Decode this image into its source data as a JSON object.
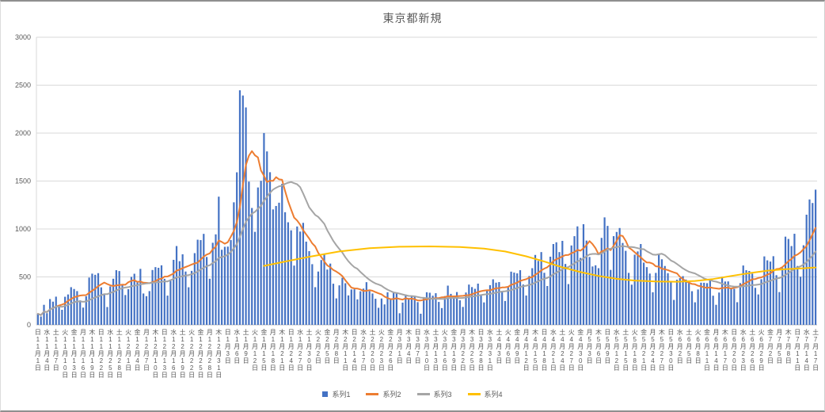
{
  "chart": {
    "title": "東京都新規"
  },
  "chart_data": {
    "type": "combo_bar_line",
    "title": "東京都新規",
    "grid": true,
    "legend_position": "bottom",
    "axis_text_color": "#595959",
    "gridline_color": "#D9D9D9",
    "axis_line_color": "#BFBFBF",
    "y_axis": {
      "min": 0,
      "max": 3000,
      "ticks": [
        0,
        500,
        1000,
        1500,
        2000,
        2500,
        3000
      ]
    },
    "x_tick_every": 3,
    "x_tick_labels": [
      "日11月1日",
      "水11月4日",
      "土11月7日",
      "火11月10日",
      "金11月13日",
      "月11月16日",
      "木11月19日",
      "日11月22日",
      "水11月25日",
      "土11月28日",
      "火12月1日",
      "金12月4日",
      "月12月7日",
      "木12月10日",
      "日12月13日",
      "水12月16日",
      "土12月19日",
      "火12月22日",
      "金12月25日",
      "月12月28日",
      "木12月31日",
      "日1月3日",
      "水1月6日",
      "土1月9日",
      "火1月12日",
      "金1月15日",
      "月1月18日",
      "木1月21日",
      "日1月24日",
      "水1月27日",
      "土1月30日",
      "火2月2日",
      "金2月5日",
      "月2月8日",
      "木2月11日",
      "日2月14日",
      "水2月17日",
      "土2月20日",
      "火2月23日",
      "金2月26日",
      "月3月1日",
      "木3月4日",
      "日3月7日",
      "水3月10日",
      "土3月13日",
      "火3月16日",
      "金3月19日",
      "月3月22日",
      "木3月25日",
      "日3月28日",
      "水3月31日",
      "土4月3日",
      "火4月6日",
      "金4月9日",
      "月4月12日",
      "木4月15日",
      "日4月18日",
      "水4月21日",
      "土4月24日",
      "火4月27日",
      "金4月30日",
      "月5月3日",
      "木5月6日",
      "日5月9日",
      "水5月12日",
      "土5月15日",
      "火5月18日",
      "金5月21日",
      "月5月24日",
      "木5月27日",
      "日5月30日",
      "水6月2日",
      "土6月5日",
      "火6月8日",
      "金6月11日",
      "月6月14日",
      "木6月17日",
      "日6月20日",
      "水6月23日",
      "土6月26日",
      "火6月29日",
      "金7月2日",
      "月7月5日",
      "木7月8日",
      "日7月11日",
      "水7月14日",
      "土7月17日"
    ],
    "values": [
      116,
      87,
      209,
      122,
      269,
      242,
      294,
      189,
      157,
      293,
      317,
      393,
      374,
      352,
      255,
      180,
      298,
      493,
      534,
      522,
      539,
      391,
      314,
      186,
      401,
      481,
      570,
      561,
      418,
      311,
      372,
      500,
      533,
      449,
      584,
      327,
      299,
      352,
      572,
      602,
      595,
      621,
      480,
      305,
      460,
      678,
      822,
      664,
      736,
      556,
      392,
      563,
      748,
      888,
      884,
      949,
      708,
      481,
      856,
      944,
      1337,
      783,
      814,
      816,
      884,
      1278,
      1591,
      2447,
      2392,
      2268,
      1494,
      1219,
      970,
      1433,
      1502,
      2001,
      1809,
      1592,
      1204,
      1240,
      1274,
      1471,
      1175,
      1070,
      986,
      618,
      1026,
      973,
      1064,
      868,
      769,
      633,
      393,
      556,
      676,
      734,
      577,
      639,
      429,
      276,
      412,
      491,
      434,
      307,
      369,
      371,
      266,
      350,
      378,
      445,
      353,
      327,
      272,
      178,
      275,
      213,
      340,
      270,
      337,
      329,
      121,
      232,
      316,
      279,
      301,
      293,
      237,
      116,
      290,
      340,
      335,
      304,
      330,
      239,
      175,
      300,
      409,
      323,
      303,
      342,
      256,
      187,
      337,
      420,
      394,
      376,
      430,
      313,
      234,
      364,
      414,
      475,
      440,
      446,
      355,
      249,
      399,
      555,
      545,
      537,
      570,
      421,
      306,
      510,
      591,
      729,
      667,
      759,
      543,
      405,
      711,
      843,
      861,
      759,
      876,
      635,
      425,
      828,
      925,
      1027,
      698,
      1050,
      879,
      708,
      609,
      621,
      591,
      907,
      1121,
      1032,
      573,
      925,
      969,
      1010,
      854,
      772,
      542,
      419,
      732,
      766,
      843,
      649,
      602,
      535,
      340,
      542,
      743,
      684,
      614,
      539,
      448,
      260,
      471,
      487,
      508,
      472,
      436,
      351,
      235,
      369,
      440,
      439,
      435,
      467,
      304,
      209,
      337,
      501,
      452,
      453,
      388,
      376,
      236,
      435,
      619,
      570,
      562,
      534,
      386,
      317,
      476,
      714,
      673,
      660,
      716,
      518,
      342,
      593,
      920,
      896,
      822,
      950,
      614,
      502,
      830,
      1149,
      1308,
      1271,
      1410
    ],
    "series": [
      {
        "name": "系列1",
        "type": "bar",
        "color": "#4472C4",
        "data": "values"
      },
      {
        "name": "系列2",
        "type": "line",
        "color": "#ED7D31",
        "derive": "moving_average",
        "moving_average_window": 7
      },
      {
        "name": "系列3",
        "type": "line",
        "color": "#A5A5A5",
        "derive": "moving_average",
        "moving_average_window": 21
      },
      {
        "name": "系列4",
        "type": "line",
        "color": "#FFC000",
        "points": [
          [
            75,
            615
          ],
          [
            82,
            660
          ],
          [
            90,
            710
          ],
          [
            100,
            765
          ],
          [
            110,
            800
          ],
          [
            120,
            815
          ],
          [
            130,
            818
          ],
          [
            140,
            812
          ],
          [
            148,
            795
          ],
          [
            155,
            765
          ],
          [
            162,
            715
          ],
          [
            168,
            660
          ],
          [
            174,
            600
          ],
          [
            180,
            550
          ],
          [
            186,
            510
          ],
          [
            192,
            480
          ],
          [
            198,
            462
          ],
          [
            205,
            452
          ],
          [
            212,
            450
          ],
          [
            218,
            458
          ],
          [
            224,
            478
          ],
          [
            230,
            510
          ],
          [
            236,
            540
          ],
          [
            242,
            565
          ],
          [
            248,
            580
          ],
          [
            254,
            590
          ],
          [
            258,
            598
          ]
        ]
      }
    ]
  }
}
